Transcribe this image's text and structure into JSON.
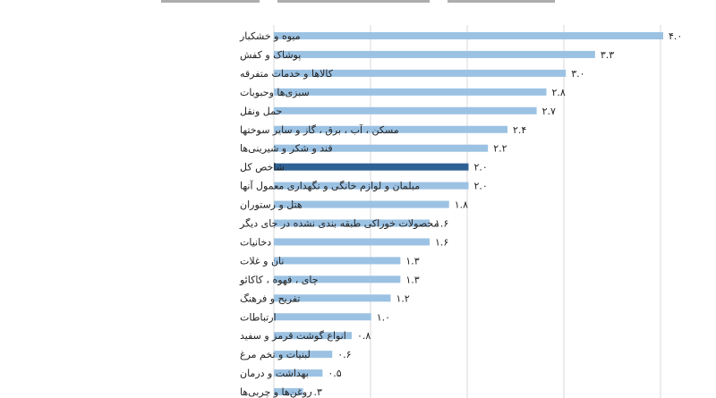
{
  "chart_data": {
    "type": "bar",
    "orientation": "horizontal",
    "categories": [
      "میوه و خشکبار",
      "پوشاک و کفش",
      "کالاها و خدمات متفرقه",
      "سبزی‌ها وحبوبات",
      "حمل ونقل",
      "مسکن ، آب ، برق ، گاز و سایر سوختها",
      "قند و شکر و شیرینی‌ها",
      "شاخص کل",
      "مبلمان و لوازم خانگی و نگهداری معمول آنها",
      "هتل و رستوران",
      "محصولات خوراکی طبقه بندی نشده در جای دیگر",
      "دخانیات",
      "نان و غلات",
      "چای ، قهوه ، کاکائو",
      "تفریح و فرهنگ",
      "ارتباطات",
      "انواع گوشت قرمز و سفید",
      "لبنیات و تخم مرغ",
      "بهداشت و درمان",
      "روغن‌ها و چربی‌ها"
    ],
    "values": [
      4.0,
      3.3,
      3.0,
      2.8,
      2.7,
      2.4,
      2.2,
      2.0,
      2.0,
      1.8,
      1.6,
      1.6,
      1.3,
      1.3,
      1.2,
      1.0,
      0.8,
      0.6,
      0.5,
      0.3
    ],
    "value_labels": [
      "۴.۰",
      "۳.۳",
      "۳.۰",
      "۲.۸",
      "۲.۷",
      "۲.۴",
      "۲.۲",
      "۲.۰",
      "۲.۰",
      "۱.۸",
      "۱.۶",
      "۱.۶",
      "۱.۳",
      "۱.۳",
      "۱.۲",
      "۱.۰",
      "۰.۸",
      "۰.۶",
      "۰.۵",
      "۰.۳"
    ],
    "highlight_index": 7,
    "xlim": [
      0,
      4.2
    ],
    "grid": true,
    "colors": {
      "bar": "#9cc2e3",
      "highlight": "#2e6295",
      "grid": "#d9d9d9"
    }
  }
}
